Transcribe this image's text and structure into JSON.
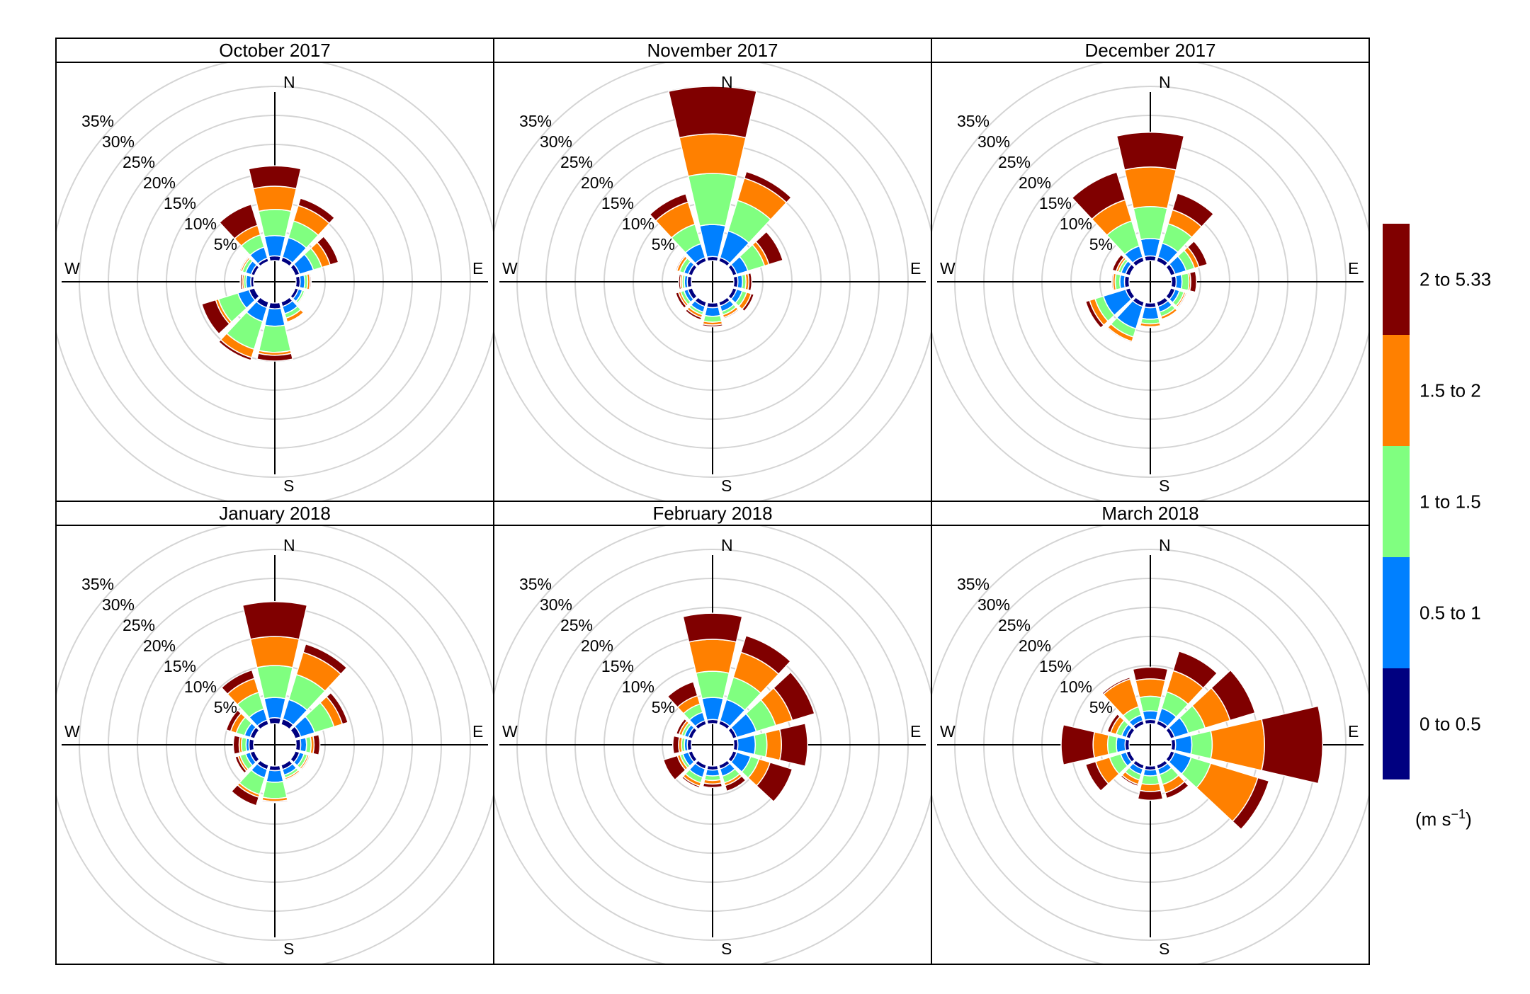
{
  "chart_data": {
    "type": "windrose",
    "angle_step_deg": 30,
    "directions_deg": [
      0,
      30,
      60,
      90,
      120,
      150,
      180,
      210,
      240,
      270,
      300,
      330
    ],
    "compass_labels": [
      "N",
      "E",
      "S",
      "W"
    ],
    "radial_labels": [
      "5%",
      "10%",
      "15%",
      "20%",
      "25%",
      "30%",
      "35%"
    ],
    "radial_max": 35,
    "legend": {
      "unit_label": "(m s",
      "unit_exponent": "−1",
      "unit_close": ")",
      "bins": [
        {
          "label": "0 to 0.5",
          "color": "#000080"
        },
        {
          "label": "0.5 to 1",
          "color": "#0080ff"
        },
        {
          "label": "1 to 1.5",
          "color": "#80ff80"
        },
        {
          "label": "1.5 to 2",
          "color": "#ff8000"
        },
        {
          "label": "2 to 5.33",
          "color": "#800000"
        }
      ]
    },
    "panels": [
      {
        "title": "October 2017",
        "sectors": [
          [
            0.8,
            3.5,
            4.5,
            4.0,
            3.5
          ],
          [
            0.8,
            3.5,
            3.0,
            2.8,
            1.3
          ],
          [
            0.8,
            2.5,
            1.5,
            1.5,
            1.5
          ],
          [
            0.7,
            0.8,
            0.5,
            0.4,
            0.2
          ],
          [
            0.6,
            0.7,
            0.4,
            0.2,
            0.1
          ],
          [
            0.8,
            1.3,
            0.8,
            0.7,
            0.1
          ],
          [
            1.0,
            3.0,
            4.5,
            0.5,
            1.0
          ],
          [
            1.0,
            2.5,
            5.0,
            1.5,
            0.5
          ],
          [
            1.0,
            2.0,
            3.5,
            0.5,
            2.5
          ],
          [
            0.5,
            0.8,
            0.4,
            0.3,
            0.3
          ],
          [
            0.6,
            1.0,
            0.6,
            0.3,
            0.2
          ],
          [
            0.6,
            2.0,
            2.2,
            1.7,
            3.8
          ]
        ]
      },
      {
        "title": "November 2017",
        "sectors": [
          [
            0.7,
            5.5,
            8.8,
            6.8,
            8.2
          ],
          [
            0.7,
            4.8,
            5.5,
            4.0,
            1.2
          ],
          [
            0.7,
            2.0,
            3.0,
            0.8,
            2.5
          ],
          [
            0.7,
            0.8,
            0.6,
            0.5,
            0.5
          ],
          [
            0.7,
            1.0,
            0.8,
            0.8,
            0.5
          ],
          [
            0.7,
            1.0,
            0.6,
            0.5,
            0.2
          ],
          [
            0.8,
            1.5,
            1.0,
            0.5,
            0.3
          ],
          [
            0.8,
            1.0,
            0.5,
            0.5,
            0.4
          ],
          [
            0.8,
            0.7,
            0.6,
            0.4,
            0.5
          ],
          [
            0.7,
            0.5,
            0.4,
            0.3,
            0.3
          ],
          [
            0.7,
            0.8,
            0.8,
            0.5,
            0.2
          ],
          [
            0.7,
            2.5,
            3.5,
            4.0,
            1.5
          ]
        ]
      },
      {
        "title": "December 2017",
        "sectors": [
          [
            0.8,
            3.0,
            5.5,
            6.8,
            6.0
          ],
          [
            0.8,
            2.5,
            3.5,
            2.5,
            3.0
          ],
          [
            0.8,
            2.0,
            1.5,
            0.8,
            1.5
          ],
          [
            0.8,
            1.0,
            1.2,
            0.3,
            1.0
          ],
          [
            0.8,
            0.8,
            0.8,
            0.3,
            0.2
          ],
          [
            0.8,
            1.0,
            0.8,
            0.5,
            0.1
          ],
          [
            0.8,
            2.0,
            0.8,
            0.5,
            0.1
          ],
          [
            0.8,
            4.0,
            1.5,
            0.8,
            0.2
          ],
          [
            0.8,
            4.0,
            1.5,
            1.0,
            0.7
          ],
          [
            0.8,
            0.8,
            0.8,
            0.4,
            0.2
          ],
          [
            0.8,
            0.8,
            0.5,
            0.4,
            0.7
          ],
          [
            0.8,
            2.0,
            4.5,
            3.8,
            5.0
          ]
        ]
      },
      {
        "title": "January 2018",
        "sectors": [
          [
            1.0,
            3.5,
            5.5,
            5.0,
            6.0
          ],
          [
            1.0,
            3.5,
            4.5,
            4.0,
            1.5
          ],
          [
            1.0,
            2.5,
            3.5,
            1.5,
            1.0
          ],
          [
            0.8,
            1.0,
            0.8,
            0.5,
            1.0
          ],
          [
            0.8,
            0.8,
            0.6,
            0.3,
            0.2
          ],
          [
            0.8,
            1.0,
            0.5,
            0.3,
            0.2
          ],
          [
            0.8,
            2.0,
            2.8,
            0.5,
            0.2
          ],
          [
            0.8,
            1.5,
            3.0,
            0.5,
            1.5
          ],
          [
            0.8,
            0.8,
            1.0,
            0.4,
            0.5
          ],
          [
            0.8,
            0.5,
            0.8,
            0.4,
            1.0
          ],
          [
            0.8,
            1.0,
            1.5,
            1.0,
            0.8
          ],
          [
            0.8,
            2.0,
            3.0,
            2.5,
            1.5
          ]
        ]
      },
      {
        "title": "February 2018",
        "sectors": [
          [
            0.7,
            3.8,
            4.5,
            5.5,
            4.5
          ],
          [
            0.7,
            3.8,
            4.0,
            4.5,
            3.0
          ],
          [
            0.7,
            3.5,
            3.5,
            3.0,
            4.0
          ],
          [
            0.7,
            3.0,
            2.0,
            2.5,
            4.5
          ],
          [
            0.7,
            2.5,
            1.5,
            2.0,
            4.0
          ],
          [
            0.7,
            1.3,
            1.2,
            0.5,
            1.0
          ],
          [
            0.7,
            1.0,
            0.8,
            0.6,
            0.6
          ],
          [
            0.7,
            1.5,
            1.0,
            0.6,
            0.3
          ],
          [
            0.7,
            1.0,
            0.5,
            0.5,
            2.5
          ],
          [
            0.7,
            0.5,
            0.5,
            0.5,
            1.0
          ],
          [
            0.7,
            0.7,
            0.5,
            0.5,
            0.5
          ],
          [
            0.7,
            1.5,
            1.5,
            1.5,
            2.5
          ]
        ]
      },
      {
        "title": "March 2018",
        "sectors": [
          [
            0.7,
            1.5,
            2.5,
            3.0,
            2.0
          ],
          [
            0.7,
            2.2,
            3.0,
            3.8,
            3.5
          ],
          [
            0.7,
            2.5,
            3.0,
            4.5,
            4.5
          ],
          [
            0.7,
            2.8,
            3.5,
            9.0,
            10.0
          ],
          [
            0.7,
            3.0,
            3.5,
            8.5,
            2.0
          ],
          [
            0.7,
            1.0,
            1.8,
            1.5,
            1.0
          ],
          [
            0.7,
            1.0,
            1.5,
            1.2,
            1.5
          ],
          [
            0.7,
            1.0,
            1.0,
            0.8,
            0.3
          ],
          [
            0.7,
            1.0,
            2.0,
            2.5,
            1.8
          ],
          [
            0.7,
            1.5,
            1.5,
            2.5,
            5.5
          ],
          [
            0.7,
            0.8,
            1.0,
            1.0,
            0.6
          ],
          [
            0.7,
            1.0,
            1.5,
            5.0,
            0.3
          ]
        ]
      }
    ]
  }
}
